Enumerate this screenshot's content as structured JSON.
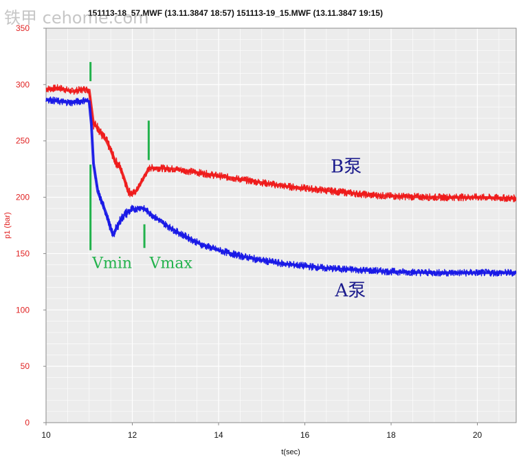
{
  "header": {
    "title": "151113-18_57.MWF (13.11.3847 18:57) 151113-19_15.MWF (13.11.3847 19:15)",
    "watermark": "铁甲 cehome.com"
  },
  "colors": {
    "plot_bg": "#ececec",
    "grid": "#ffffff",
    "axis_text": "#e02020",
    "series_b": "#ee1c1c",
    "series_a": "#1a1ae6",
    "marker": "#22b24c",
    "annot_text": "#1a1a8c"
  },
  "chart_data": {
    "type": "line",
    "xlabel": "t(sec)",
    "ylabel": "p1 (bar)",
    "xlim": [
      10,
      20.9
    ],
    "ylim": [
      0,
      350
    ],
    "xticks": [
      10,
      12,
      14,
      16,
      18,
      20
    ],
    "yticks": [
      0,
      50,
      100,
      150,
      200,
      250,
      300,
      350
    ],
    "grid": true,
    "series": [
      {
        "name": "B泵",
        "color": "#ee1c1c",
        "x": [
          10.0,
          10.3,
          10.6,
          10.9,
          11.0,
          11.05,
          11.1,
          11.2,
          11.3,
          11.4,
          11.5,
          11.6,
          11.7,
          11.8,
          11.9,
          12.0,
          12.1,
          12.2,
          12.3,
          12.4,
          12.6,
          13.0,
          13.5,
          14.0,
          14.5,
          15.0,
          15.5,
          16.0,
          16.5,
          17.0,
          17.5,
          18.0,
          19.0,
          20.0,
          20.9
        ],
        "y": [
          296,
          297,
          294,
          296,
          295,
          280,
          265,
          262,
          255,
          250,
          242,
          232,
          228,
          218,
          206,
          203,
          206,
          213,
          220,
          226,
          226,
          225,
          222,
          219,
          216,
          213,
          210,
          208,
          206,
          204,
          202,
          201,
          200,
          200,
          199
        ]
      },
      {
        "name": "A泵",
        "color": "#1a1ae6",
        "x": [
          10.0,
          10.3,
          10.6,
          10.9,
          11.0,
          11.05,
          11.1,
          11.2,
          11.3,
          11.4,
          11.5,
          11.55,
          11.6,
          11.7,
          11.8,
          11.9,
          12.0,
          12.1,
          12.2,
          12.3,
          12.5,
          12.8,
          13.0,
          13.3,
          13.6,
          14.0,
          14.5,
          15.0,
          15.5,
          16.0,
          16.5,
          17.0,
          17.5,
          18.0,
          19.0,
          20.0,
          20.9
        ],
        "y": [
          287,
          285,
          284,
          286,
          285,
          265,
          230,
          205,
          195,
          185,
          172,
          167,
          170,
          178,
          184,
          187,
          189,
          190,
          191,
          189,
          183,
          175,
          170,
          164,
          158,
          153,
          148,
          144,
          141,
          139,
          137,
          136,
          135,
          134,
          133,
          133,
          133
        ]
      }
    ],
    "annotations": [
      {
        "text": "B泵",
        "x": 16.6,
        "y": 222
      },
      {
        "text": "A泵",
        "x": 16.7,
        "y": 112
      },
      {
        "text": "Vmin",
        "x": 11.07,
        "y": 137
      },
      {
        "text": "Vmax",
        "x": 12.4,
        "y": 137
      }
    ],
    "markers": [
      {
        "x": 11.03,
        "y_from": 303,
        "y_to": 320
      },
      {
        "x": 11.03,
        "y_from": 153,
        "y_to": 229
      },
      {
        "x": 12.38,
        "y_from": 233,
        "y_to": 268
      },
      {
        "x": 12.28,
        "y_from": 155,
        "y_to": 176
      }
    ]
  }
}
